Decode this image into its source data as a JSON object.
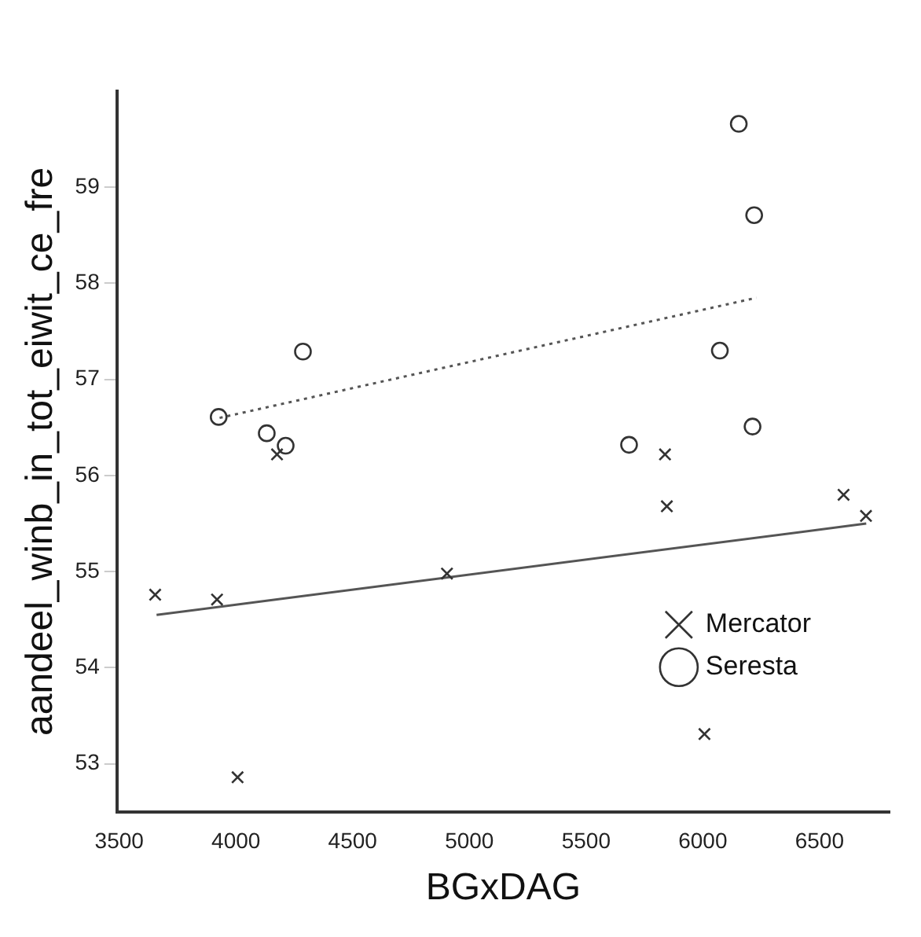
{
  "chart_data": {
    "type": "scatter",
    "xlabel": "BGxDAG",
    "ylabel": "aandeel_winb_in_tot_eiwit_ce_fre",
    "xlim": [
      3490,
      6800
    ],
    "xticks": [
      3500,
      4000,
      4500,
      5000,
      5500,
      6000,
      6500
    ],
    "ylim": [
      52.5,
      60
    ],
    "yticks": [
      53,
      54,
      55,
      56,
      57,
      58,
      59
    ],
    "grid": false,
    "legend": "right",
    "series": [
      {
        "name": "Mercator",
        "color": "#333333",
        "marker": "cross",
        "x": [
          3654,
          3919,
          4007,
          4176,
          4904,
          5838,
          5846,
          6007,
          6603,
          6699
        ],
        "values": [
          54.76,
          54.71,
          52.86,
          56.22,
          54.98,
          56.22,
          55.68,
          53.31,
          55.8,
          55.58
        ]
      },
      {
        "name": "Seresta",
        "color": "#333333",
        "marker": "circle",
        "x": [
          3926,
          4132,
          4213,
          4287,
          5684,
          6073,
          6154,
          6213,
          6220
        ],
        "values": [
          56.61,
          56.44,
          56.31,
          57.29,
          56.32,
          57.3,
          59.66,
          56.51,
          58.71
        ]
      },
      {
        "type": "line",
        "color": "#555555",
        "line_style": "solid",
        "marker": "none",
        "x": [
          3660,
          6700
        ],
        "values": [
          54.55,
          55.5
        ]
      },
      {
        "type": "line",
        "color": "#555555",
        "line_style": "dotted",
        "marker": "none",
        "x": [
          3930,
          6230
        ],
        "values": [
          56.6,
          57.85
        ]
      }
    ]
  }
}
